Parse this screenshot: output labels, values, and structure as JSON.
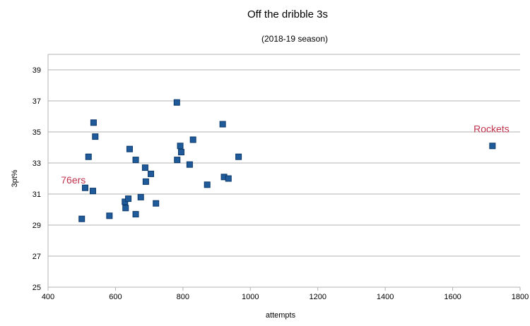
{
  "chart_data": {
    "type": "scatter",
    "title": "Off the dribble 3s",
    "subtitle": "(2018-19 season)",
    "xlabel": "attempts",
    "ylabel": "3pt%",
    "xlim": [
      400,
      1800
    ],
    "ylim": [
      25,
      40
    ],
    "xticks": [
      "400",
      "600",
      "800",
      "1000",
      "1200",
      "1400",
      "1600",
      "1800"
    ],
    "yticks": [
      "25",
      "27",
      "29",
      "31",
      "33",
      "35",
      "37",
      "39"
    ],
    "grid": "horizontal",
    "marker_color": "#1f5a9a",
    "annotations": [
      {
        "text": "76ers",
        "x": 475,
        "y": 31.9
      },
      {
        "text": "Rockets",
        "x": 1715,
        "y": 35.2
      }
    ],
    "points": [
      {
        "x": 500,
        "y": 29.4
      },
      {
        "x": 510,
        "y": 31.4
      },
      {
        "x": 520,
        "y": 33.4
      },
      {
        "x": 533,
        "y": 31.2
      },
      {
        "x": 535,
        "y": 35.6
      },
      {
        "x": 540,
        "y": 34.7
      },
      {
        "x": 582,
        "y": 29.6
      },
      {
        "x": 628,
        "y": 30.5
      },
      {
        "x": 630,
        "y": 30.1
      },
      {
        "x": 638,
        "y": 30.7
      },
      {
        "x": 642,
        "y": 33.9
      },
      {
        "x": 660,
        "y": 33.2
      },
      {
        "x": 660,
        "y": 29.7
      },
      {
        "x": 675,
        "y": 30.8
      },
      {
        "x": 688,
        "y": 32.7
      },
      {
        "x": 690,
        "y": 31.8
      },
      {
        "x": 705,
        "y": 32.3
      },
      {
        "x": 720,
        "y": 30.4
      },
      {
        "x": 782,
        "y": 36.9
      },
      {
        "x": 783,
        "y": 33.2
      },
      {
        "x": 792,
        "y": 34.1
      },
      {
        "x": 795,
        "y": 33.7
      },
      {
        "x": 820,
        "y": 32.9
      },
      {
        "x": 830,
        "y": 34.5
      },
      {
        "x": 872,
        "y": 31.6
      },
      {
        "x": 918,
        "y": 35.5
      },
      {
        "x": 922,
        "y": 32.1
      },
      {
        "x": 935,
        "y": 32.0
      },
      {
        "x": 965,
        "y": 33.4
      },
      {
        "x": 1718,
        "y": 34.1
      }
    ]
  }
}
